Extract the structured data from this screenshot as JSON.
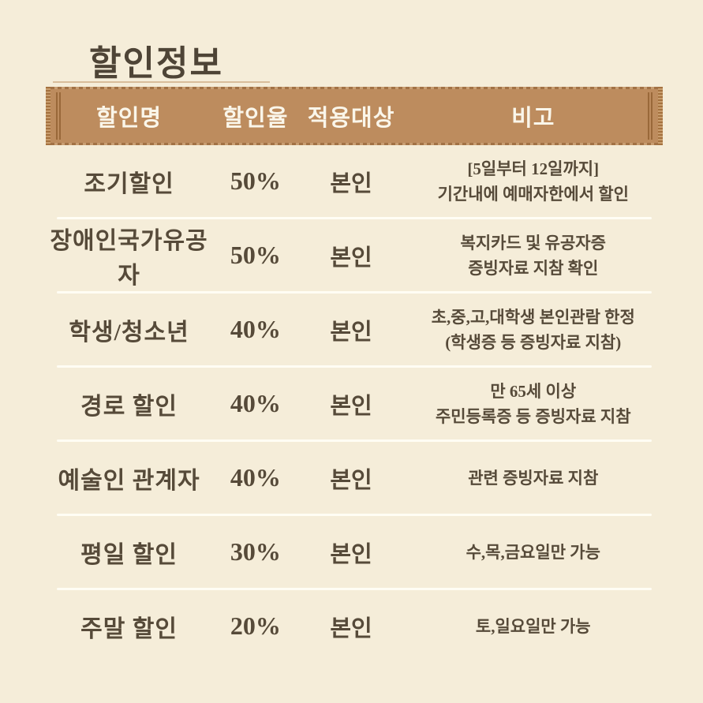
{
  "page": {
    "title": "할인정보"
  },
  "table": {
    "headers": [
      "할인명",
      "할인율",
      "적용대상",
      "비고"
    ],
    "rows": [
      {
        "name": "조기할인",
        "rate": "50%",
        "target": "본인",
        "note": "[5일부터 12일까지]\n기간내에 예매자한에서 할인"
      },
      {
        "name": "장애인국가유공자",
        "rate": "50%",
        "target": "본인",
        "note": "복지카드 및 유공자증\n증빙자료 지참 확인"
      },
      {
        "name": "학생/청소년",
        "rate": "40%",
        "target": "본인",
        "note": "초,중,고,대학생 본인관람 한정\n(학생증 등 증빙자료 지참)"
      },
      {
        "name": "경로 할인",
        "rate": "40%",
        "target": "본인",
        "note": "만 65세 이상\n주민등록증 등 증빙자료 지참"
      },
      {
        "name": "예술인 관계자",
        "rate": "40%",
        "target": "본인",
        "note": "관련 증빙자료 지참"
      },
      {
        "name": "평일 할인",
        "rate": "30%",
        "target": "본인",
        "note": "수,목,금요일만 가능"
      },
      {
        "name": "주말 할인",
        "rate": "20%",
        "target": "본인",
        "note": "토,일요일만 가능"
      }
    ]
  },
  "colors": {
    "background": "#f5edd9",
    "banner": "#bd8c5e",
    "banner_edge_dark": "#a5723f",
    "banner_edge_light": "#c99e6e",
    "header_text": "#faf6ea",
    "body_text": "#564a39",
    "divider": "#fffdf4",
    "underline": "#d8bd9a",
    "title_text": "#4e4436"
  }
}
